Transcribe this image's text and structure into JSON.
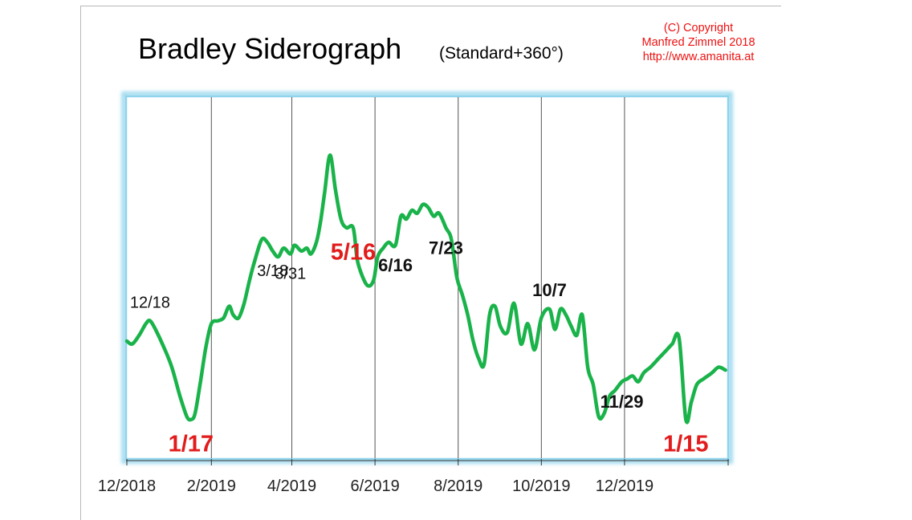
{
  "header": {
    "title": "Bradley Siderograph",
    "subtitle": "(Standard+360°)",
    "copyright": [
      "(C) Copyright",
      "Manfred Zimmel  2018",
      "http://www.amanita.at"
    ]
  },
  "colors": {
    "line": "#19b34a",
    "red_label": "#e21b1b",
    "plot_border": "#a6ddef",
    "grid": "#555555"
  },
  "chart_data": {
    "type": "line",
    "title": "Bradley Siderograph",
    "subtitle": "(Standard+360°)",
    "xlabel": "",
    "ylabel": "",
    "x_ticks": [
      "12/2018",
      "2/2019",
      "4/2019",
      "6/2019",
      "8/2019",
      "10/2019",
      "12/2019"
    ],
    "x_range": [
      "2018-12-01",
      "2020-02-15"
    ],
    "y_range": [
      0,
      100
    ],
    "y_axis_labels_shown": false,
    "grid": "vertical",
    "series": [
      {
        "x": [
          "2018-12-01",
          "2018-12-05",
          "2018-12-10",
          "2018-12-15",
          "2018-12-18",
          "2018-12-22",
          "2018-12-28",
          "2019-01-03",
          "2019-01-09",
          "2019-01-14",
          "2019-01-17",
          "2019-01-20",
          "2019-01-24",
          "2019-01-28",
          "2019-02-01",
          "2019-02-06",
          "2019-02-10",
          "2019-02-14",
          "2019-02-17",
          "2019-02-21",
          "2019-02-25",
          "2019-03-01",
          "2019-03-05",
          "2019-03-10",
          "2019-03-14",
          "2019-03-18",
          "2019-03-22",
          "2019-03-26",
          "2019-03-31",
          "2019-04-03",
          "2019-04-08",
          "2019-04-12",
          "2019-04-15",
          "2019-04-19",
          "2019-04-22",
          "2019-04-25",
          "2019-04-29",
          "2019-05-03",
          "2019-05-07",
          "2019-05-11",
          "2019-05-16",
          "2019-05-19",
          "2019-05-23",
          "2019-05-27",
          "2019-05-31",
          "2019-06-03",
          "2019-06-07",
          "2019-06-11",
          "2019-06-16",
          "2019-06-20",
          "2019-06-24",
          "2019-06-28",
          "2019-07-02",
          "2019-07-06",
          "2019-07-10",
          "2019-07-14",
          "2019-07-18",
          "2019-07-23",
          "2019-07-27",
          "2019-07-31",
          "2019-08-04",
          "2019-08-08",
          "2019-08-12",
          "2019-08-16",
          "2019-08-20",
          "2019-08-24",
          "2019-08-28",
          "2019-09-01",
          "2019-09-06",
          "2019-09-11",
          "2019-09-16",
          "2019-09-21",
          "2019-09-26",
          "2019-10-01",
          "2019-10-07",
          "2019-10-11",
          "2019-10-15",
          "2019-10-19",
          "2019-10-23",
          "2019-10-27",
          "2019-10-31",
          "2019-11-04",
          "2019-11-08",
          "2019-11-12",
          "2019-11-16",
          "2019-11-20",
          "2019-11-24",
          "2019-11-29",
          "2019-12-03",
          "2019-12-07",
          "2019-12-11",
          "2019-12-15",
          "2019-12-20",
          "2019-12-24",
          "2019-12-28",
          "2020-01-01",
          "2020-01-05",
          "2020-01-10",
          "2020-01-15",
          "2020-01-19",
          "2020-01-23",
          "2020-01-28",
          "2020-02-03",
          "2020-02-08",
          "2020-02-13"
        ],
        "values": [
          29,
          28,
          31,
          35,
          36,
          33,
          27,
          20,
          10,
          3,
          2,
          4,
          15,
          27,
          35,
          36,
          37,
          41,
          38,
          37,
          42,
          50,
          57,
          64,
          63,
          60,
          58,
          61,
          59,
          62,
          60,
          61,
          59,
          63,
          70,
          80,
          93,
          81,
          71,
          68,
          68,
          57,
          51,
          48,
          50,
          58,
          61,
          63,
          62,
          72,
          71,
          74,
          73,
          76,
          75,
          72,
          73,
          68,
          64,
          51,
          45,
          38,
          29,
          23,
          21,
          38,
          41,
          34,
          32,
          42,
          28,
          35,
          26,
          37,
          40,
          33,
          40,
          38,
          34,
          31,
          38,
          20,
          14,
          3,
          4,
          10,
          12,
          15,
          16,
          17,
          15,
          18,
          20,
          22,
          24,
          26,
          28,
          30,
          2,
          8,
          14,
          16,
          18,
          20,
          19
        ],
        "color": "#19b34a"
      }
    ],
    "annotations": [
      {
        "text": "12/18",
        "x": "2018-12-18",
        "color": "black",
        "weight": "normal"
      },
      {
        "text": "1/17",
        "x": "2019-01-17",
        "color": "red",
        "weight": "bold"
      },
      {
        "text": "3/18",
        "x": "2019-03-18",
        "color": "black",
        "weight": "normal"
      },
      {
        "text": "3/31",
        "x": "2019-03-31",
        "color": "black",
        "weight": "normal"
      },
      {
        "text": "5/16",
        "x": "2019-05-16",
        "color": "red",
        "weight": "bold"
      },
      {
        "text": "6/16",
        "x": "2019-06-16",
        "color": "black",
        "weight": "bold"
      },
      {
        "text": "7/23",
        "x": "2019-07-23",
        "color": "black",
        "weight": "bold"
      },
      {
        "text": "10/7",
        "x": "2019-10-07",
        "color": "black",
        "weight": "bold"
      },
      {
        "text": "11/29",
        "x": "2019-11-29",
        "color": "black",
        "weight": "bold"
      },
      {
        "text": "1/15",
        "x": "2020-01-15",
        "color": "red",
        "weight": "bold"
      }
    ]
  }
}
